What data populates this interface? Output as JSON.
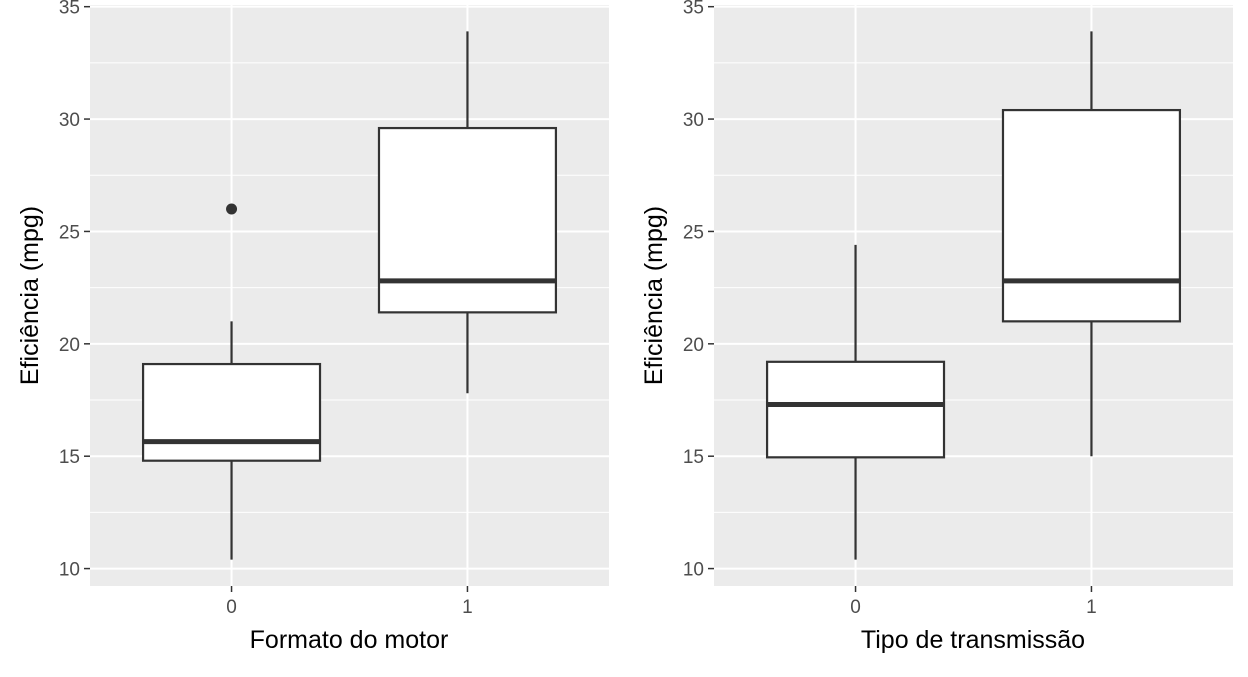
{
  "chart_data": [
    {
      "type": "box",
      "xlabel": "Formato do motor",
      "ylabel": "Eficiência (mpg)",
      "ylim": [
        10,
        35
      ],
      "yticks": [
        10,
        15,
        20,
        25,
        30,
        35
      ],
      "categories": [
        "0",
        "1"
      ],
      "boxes": [
        {
          "category": "0",
          "whisker_low": 10.4,
          "q1": 14.8,
          "median": 15.65,
          "q3": 19.1,
          "whisker_high": 21.0,
          "outliers": [
            26.0
          ]
        },
        {
          "category": "1",
          "whisker_low": 17.8,
          "q1": 21.4,
          "median": 22.8,
          "q3": 29.6,
          "whisker_high": 33.9,
          "outliers": []
        }
      ],
      "grid": true,
      "legend": "none"
    },
    {
      "type": "box",
      "xlabel": "Tipo de transmissão",
      "ylabel": "Eficiência (mpg)",
      "ylim": [
        10,
        35
      ],
      "yticks": [
        10,
        15,
        20,
        25,
        30,
        35
      ],
      "categories": [
        "0",
        "1"
      ],
      "boxes": [
        {
          "category": "0",
          "whisker_low": 10.4,
          "q1": 14.95,
          "median": 17.3,
          "q3": 19.2,
          "whisker_high": 24.4,
          "outliers": []
        },
        {
          "category": "1",
          "whisker_low": 15.0,
          "q1": 21.0,
          "median": 22.8,
          "q3": 30.4,
          "whisker_high": 33.9,
          "outliers": []
        }
      ],
      "grid": true,
      "legend": "none"
    }
  ],
  "colors": {
    "panel": "#ebebeb",
    "grid": "#ffffff",
    "box_fill": "#ffffff",
    "box_line": "#333333",
    "tick_label": "#4d4d4d",
    "axis_title": "#000000"
  }
}
